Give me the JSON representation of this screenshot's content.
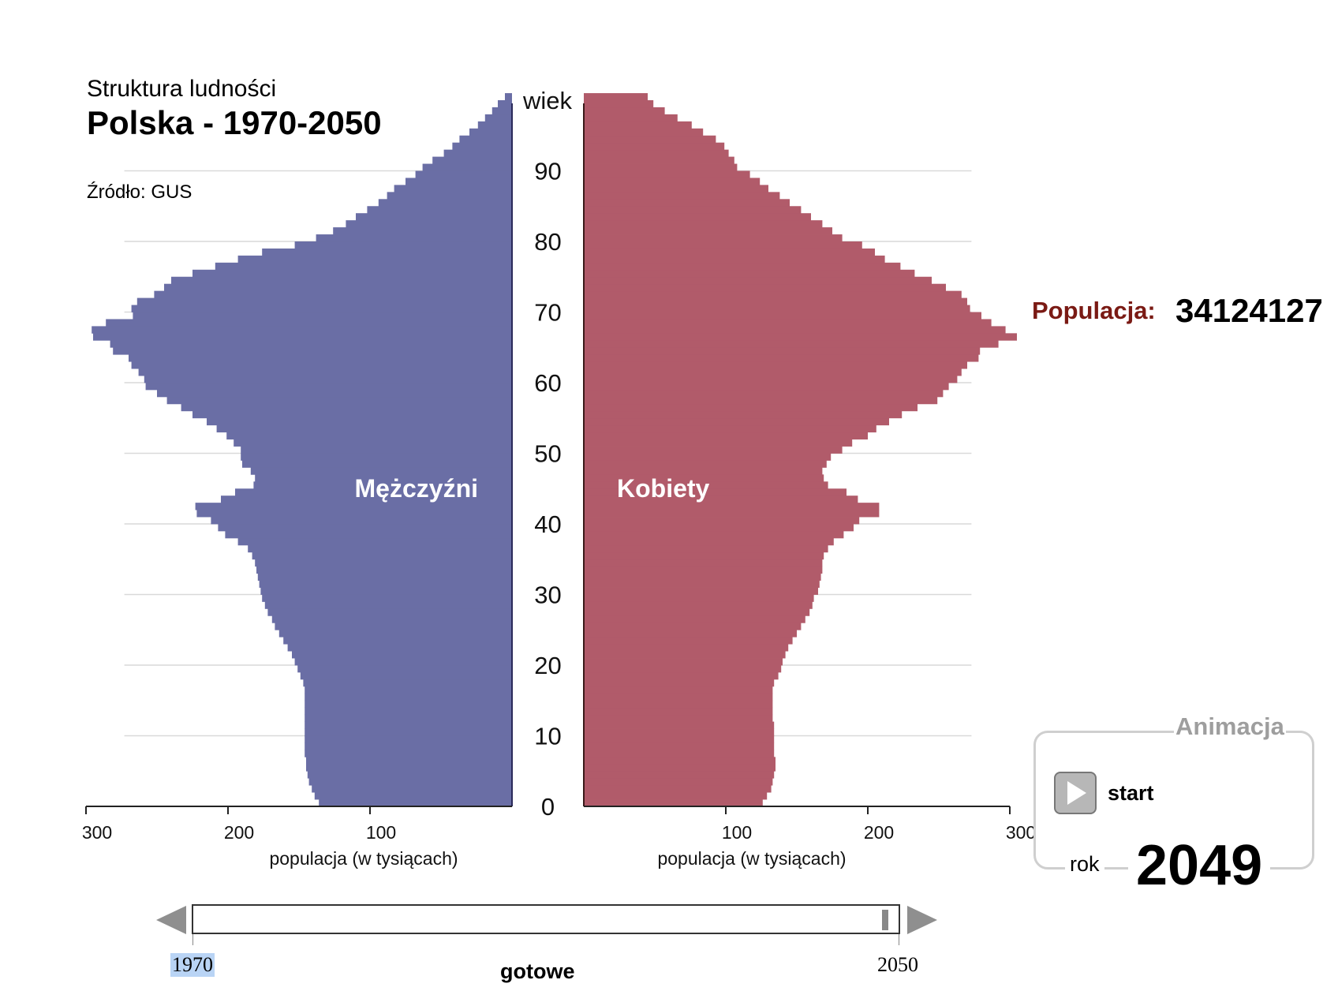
{
  "header": {
    "subtitle": "Struktura ludności",
    "title": "Polska - 1970-2050",
    "source": "Źródło: GUS"
  },
  "population": {
    "label": "Populacja:",
    "value": "34124127"
  },
  "animation": {
    "title": "Animacja",
    "start_label": "start",
    "year_label": "rok",
    "year_value": "2049"
  },
  "slider": {
    "min_label": "1970",
    "max_label": "2050",
    "status": "gotowe",
    "position": 0.9875
  },
  "colors": {
    "male": "#6a6ea5",
    "female": "#b15b6a",
    "population_label": "#7a1a14"
  },
  "chart_data": {
    "type": "bar",
    "orientation": "horizontal-pyramid",
    "axis_title": "wiek",
    "xlabel": "populacja (w tysiącach)",
    "left_ticks": [
      "300",
      "200",
      "100"
    ],
    "right_ticks": [
      "100",
      "200",
      "300"
    ],
    "age_ticks": [
      "0",
      "10",
      "20",
      "30",
      "40",
      "50",
      "60",
      "70",
      "80",
      "90"
    ],
    "xlim": [
      0,
      300
    ],
    "ylim": [
      0,
      100
    ],
    "grid": true,
    "ages": [
      0,
      1,
      2,
      3,
      4,
      5,
      6,
      7,
      8,
      9,
      10,
      11,
      12,
      13,
      14,
      15,
      16,
      17,
      18,
      19,
      20,
      21,
      22,
      23,
      24,
      25,
      26,
      27,
      28,
      29,
      30,
      31,
      32,
      33,
      34,
      35,
      36,
      37,
      38,
      39,
      40,
      41,
      42,
      43,
      44,
      45,
      46,
      47,
      48,
      49,
      50,
      51,
      52,
      53,
      54,
      55,
      56,
      57,
      58,
      59,
      60,
      61,
      62,
      63,
      64,
      65,
      66,
      67,
      68,
      69,
      70,
      71,
      72,
      73,
      74,
      75,
      76,
      77,
      78,
      79,
      80,
      81,
      82,
      83,
      84,
      85,
      86,
      87,
      88,
      89,
      90,
      91,
      92,
      93,
      94,
      95,
      96,
      97,
      98,
      99,
      100
    ],
    "series": [
      {
        "name": "Mężczyźni",
        "values": [
          136,
          139,
          141,
          143,
          144,
          145,
          145,
          146,
          146,
          146,
          146,
          146,
          146,
          146,
          146,
          146,
          146,
          147,
          149,
          151,
          153,
          155,
          158,
          161,
          164,
          167,
          169,
          172,
          174,
          176,
          177,
          178,
          179,
          180,
          181,
          183,
          186,
          193,
          202,
          207,
          212,
          222,
          223,
          205,
          195,
          182,
          181,
          184,
          190,
          191,
          191,
          196,
          201,
          208,
          215,
          225,
          233,
          243,
          250,
          258,
          259,
          263,
          268,
          270,
          281,
          283,
          295,
          296,
          286,
          267,
          268,
          264,
          252,
          245,
          240,
          225,
          209,
          193,
          176,
          153,
          138,
          126,
          117,
          110,
          102,
          94,
          88,
          83,
          75,
          68,
          63,
          56,
          48,
          42,
          37,
          30,
          24,
          19,
          14,
          10,
          5
        ]
      },
      {
        "name": "Kobiety",
        "values": [
          126,
          129,
          132,
          133,
          134,
          135,
          135,
          134,
          134,
          134,
          134,
          134,
          133,
          133,
          133,
          133,
          133,
          134,
          137,
          139,
          140,
          142,
          144,
          147,
          150,
          153,
          156,
          159,
          161,
          162,
          165,
          166,
          167,
          168,
          168,
          169,
          172,
          176,
          183,
          190,
          194,
          208,
          208,
          193,
          185,
          172,
          169,
          168,
          171,
          174,
          182,
          189,
          200,
          206,
          215,
          224,
          235,
          249,
          253,
          257,
          263,
          266,
          270,
          278,
          279,
          292,
          305,
          297,
          287,
          280,
          272,
          270,
          266,
          255,
          245,
          233,
          223,
          212,
          205,
          196,
          182,
          175,
          168,
          160,
          153,
          145,
          138,
          130,
          124,
          117,
          108,
          106,
          102,
          99,
          93,
          84,
          76,
          66,
          57,
          49,
          45
        ]
      }
    ]
  }
}
